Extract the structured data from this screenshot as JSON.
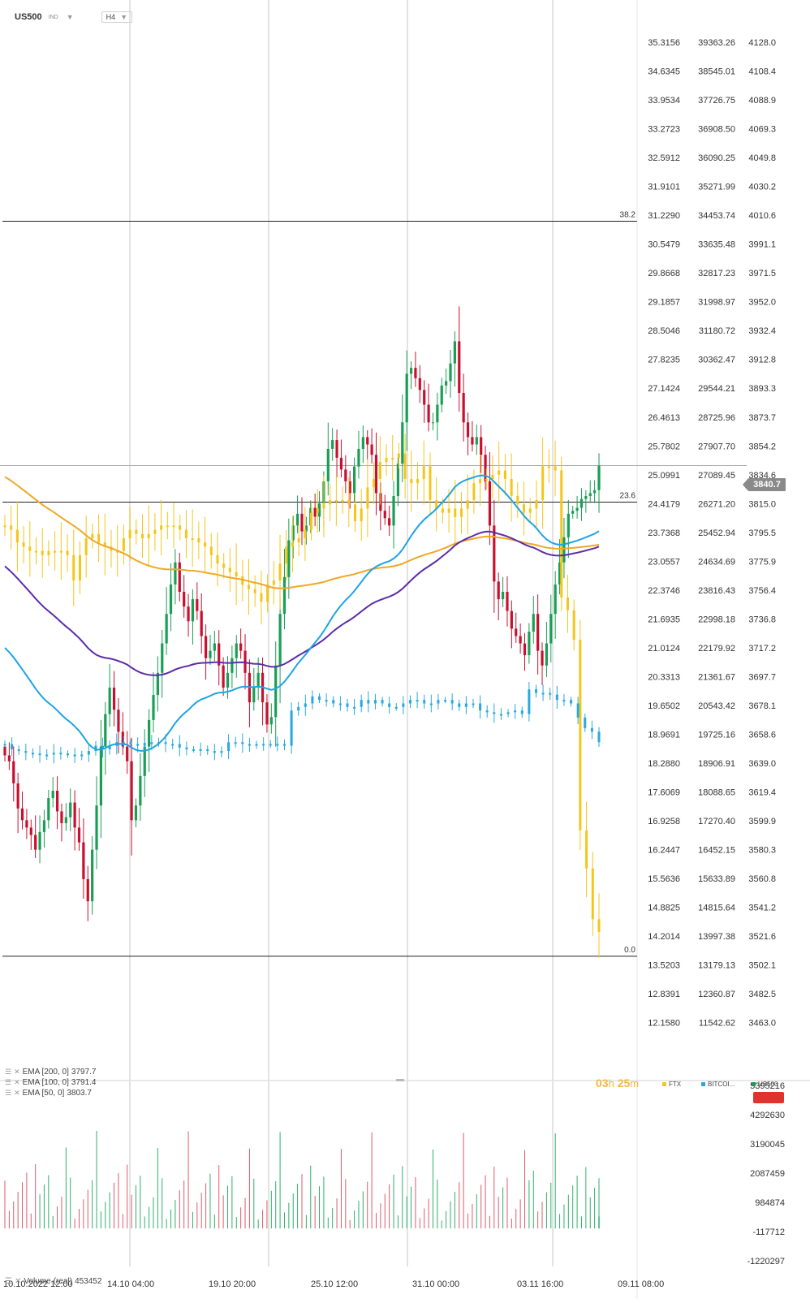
{
  "header": {
    "symbol": "US500",
    "exchange": "IND",
    "timeframe": "H4"
  },
  "last_price_tag": "3840.7",
  "fib_levels": [
    {
      "label": "38.2",
      "price": 4006.5
    },
    {
      "label": "23.6",
      "price": 3815.9
    },
    {
      "label": "0.0",
      "price": 3507.7
    }
  ],
  "axes": {
    "ftx_ticks": [
      "35.3156",
      "34.6345",
      "33.9534",
      "33.2723",
      "32.5912",
      "31.9101",
      "31.2290",
      "30.5479",
      "29.8668",
      "29.1857",
      "28.5046",
      "27.8235",
      "27.1424",
      "26.4613",
      "25.7802",
      "25.0991",
      "24.4179",
      "23.7368",
      "23.0557",
      "22.3746",
      "21.6935",
      "21.0124",
      "20.3313",
      "19.6502",
      "18.9691",
      "18.2880",
      "17.6069",
      "16.9258",
      "16.2447",
      "15.5636",
      "14.8825",
      "14.2014",
      "13.5203",
      "12.8391",
      "12.1580"
    ],
    "btc_ticks": [
      "39363.26",
      "38545.01",
      "37726.75",
      "36908.50",
      "36090.25",
      "35271.99",
      "34453.74",
      "33635.48",
      "32817.23",
      "31998.97",
      "31180.72",
      "30362.47",
      "29544.21",
      "28725.96",
      "27907.70",
      "27089.45",
      "26271.20",
      "25452.94",
      "24634.69",
      "23816.43",
      "22998.18",
      "22179.92",
      "21361.67",
      "20543.42",
      "19725.16",
      "18906.91",
      "18088.65",
      "17270.40",
      "16452.15",
      "15633.89",
      "14815.64",
      "13997.38",
      "13179.13",
      "12360.87",
      "11542.62"
    ],
    "price_ticks": [
      "4128.0",
      "4108.4",
      "4088.9",
      "4069.3",
      "4049.8",
      "4030.2",
      "4010.6",
      "3991.1",
      "3971.5",
      "3952.0",
      "3932.4",
      "3912.8",
      "3893.3",
      "3873.7",
      "3854.2",
      "3834.6",
      "3815.0",
      "3795.5",
      "3775.9",
      "3756.4",
      "3736.8",
      "3717.2",
      "3697.7",
      "3678.1",
      "3658.6",
      "3639.0",
      "3619.4",
      "3599.9",
      "3580.3",
      "3560.8",
      "3541.2",
      "3521.6",
      "3502.1",
      "3482.5",
      "3463.0"
    ],
    "volume_ticks": [
      "5395216",
      "4292630",
      "3190045",
      "2087459",
      "984874",
      "-117712",
      "-1220297"
    ],
    "x_labels": [
      "10.10.2022 12:00",
      "14.10 04:00",
      "19.10 20:00",
      "25.10 12:00",
      "31.10 00:00",
      "03.11 16:00",
      "09.11 08:00"
    ],
    "price_range": [
      3460,
      4140
    ],
    "volume_range": [
      -1220297,
      5395216
    ]
  },
  "ema_legend": [
    {
      "label": "EMA [200, 0]",
      "value": "3797.7"
    },
    {
      "label": "EMA [100, 0]",
      "value": "3791.4"
    },
    {
      "label": "EMA [50, 0]",
      "value": "3803.7"
    }
  ],
  "timer": {
    "hours": "03",
    "h_unit": "h",
    "minutes": "25",
    "m_unit": "m"
  },
  "compare_legend": [
    {
      "label": "FTX",
      "color": "#f5c518"
    },
    {
      "label": "BITCOI...",
      "color": "#29a8e0"
    },
    {
      "label": "US500",
      "color": "#1a9e55"
    }
  ],
  "volume_legend": {
    "label": "Volume",
    "mode": "(real)",
    "value": "453452"
  },
  "colors": {
    "up": "#1a9e55",
    "down": "#c8102e",
    "ftx": "#f5c518",
    "btc": "#29a8e0",
    "ema200": "#f0a824",
    "ema100": "#5c2ca8",
    "ema50": "#1ea4e3"
  },
  "chart_data": {
    "type": "candlestick",
    "title": "",
    "timeframe": "H4",
    "x_labels": [
      "10.10.2022 12:00",
      "14.10 04:00",
      "19.10 20:00",
      "25.10 12:00",
      "31.10 00:00",
      "03.11 16:00",
      "09.11 08:00"
    ],
    "ylim": [
      3460,
      4140
    ],
    "last_price": 3840.7,
    "ohlc_close": [
      3644,
      3640,
      3625,
      3608,
      3600,
      3595,
      3590,
      3580,
      3592,
      3600,
      3615,
      3620,
      3606,
      3598,
      3602,
      3612,
      3595,
      3585,
      3560,
      3545,
      3580,
      3610,
      3650,
      3672,
      3690,
      3675,
      3660,
      3650,
      3640,
      3600,
      3610,
      3630,
      3650,
      3668,
      3685,
      3700,
      3720,
      3740,
      3760,
      3775,
      3755,
      3745,
      3735,
      3750,
      3742,
      3725,
      3710,
      3715,
      3720,
      3705,
      3690,
      3700,
      3710,
      3720,
      3715,
      3700,
      3680,
      3690,
      3700,
      3680,
      3665,
      3670,
      3705,
      3740,
      3765,
      3790,
      3800,
      3808,
      3796,
      3800,
      3812,
      3806,
      3815,
      3830,
      3852,
      3858,
      3846,
      3838,
      3830,
      3822,
      3840,
      3852,
      3860,
      3855,
      3848,
      3822,
      3810,
      3805,
      3800,
      3820,
      3842,
      3870,
      3903,
      3907,
      3900,
      3892,
      3882,
      3870,
      3870,
      3882,
      3895,
      3898,
      3910,
      3925,
      3890,
      3870,
      3860,
      3855,
      3860,
      3848,
      3830,
      3800,
      3762,
      3750,
      3755,
      3742,
      3730,
      3725,
      3720,
      3712,
      3728,
      3740,
      3715,
      3705,
      3720,
      3740,
      3760,
      3775,
      3792,
      3808,
      3810,
      3812,
      3818,
      3820,
      3822,
      3824,
      3840.7
    ],
    "series": [
      {
        "name": "FTX",
        "values": [
          23.9,
          23.8,
          23.5,
          23.4,
          23.3,
          23.3,
          23.2,
          23.3,
          23.3,
          23.3,
          23.2,
          22.6,
          23.2,
          23.6,
          23.7,
          23.5,
          23.4,
          23.3,
          23.3,
          23.6,
          23.8,
          23.7,
          23.6,
          23.7,
          23.8,
          23.9,
          23.9,
          23.9,
          23.8,
          23.6,
          23.6,
          23.5,
          23.4,
          23.2,
          23.0,
          22.9,
          22.8,
          22.7,
          22.5,
          22.4,
          22.3,
          22.1,
          22.5,
          22.6,
          23.0,
          23.4,
          23.5,
          23.6,
          23.8,
          24.2,
          24.3,
          24.4,
          24.5,
          24.5,
          24.5,
          24.4,
          24.0,
          24.3,
          24.8,
          25.0,
          25.4,
          25.5,
          25.5,
          25.6,
          25.0,
          24.9,
          25.0,
          25.3,
          24.5,
          24.3,
          24.2,
          24.3,
          24.1,
          24.3,
          24.5,
          24.9,
          25.0,
          25.0,
          25.1,
          25.2,
          25.0,
          24.6,
          24.4,
          24.2,
          24.3,
          24.5,
          25.3,
          25.3,
          25.2,
          22.2,
          21.9,
          21.2,
          16.7,
          15.8,
          14.6,
          14.3
        ]
      },
      {
        "name": "BITCOIN",
        "values": [
          19450,
          19300,
          19250,
          19200,
          19180,
          19150,
          19150,
          19200,
          19180,
          19150,
          19100,
          19150,
          19250,
          19400,
          19300,
          19400,
          19500,
          19500,
          19450,
          19400,
          19480,
          19500,
          19500,
          19450,
          19450,
          19350,
          19300,
          19300,
          19300,
          19250,
          19200,
          19250,
          19500,
          19500,
          19450,
          19400,
          19450,
          19450,
          19450,
          19450,
          19400,
          20400,
          20500,
          20600,
          20800,
          20700,
          20700,
          20600,
          20600,
          20500,
          20500,
          20700,
          20600,
          20700,
          20600,
          20500,
          20500,
          20600,
          20700,
          20700,
          20600,
          20600,
          20700,
          20700,
          20600,
          20500,
          20600,
          20600,
          20400,
          20350,
          20300,
          20300,
          20350,
          20400,
          20300,
          21000,
          20900,
          20900,
          20850,
          20700,
          20700,
          20600,
          20200,
          19900,
          19800,
          19500
        ]
      }
    ],
    "ema_values": {
      "ema200": 3797.7,
      "ema100": 3791.4,
      "ema50": 3803.7
    },
    "volume_last": 453452
  }
}
